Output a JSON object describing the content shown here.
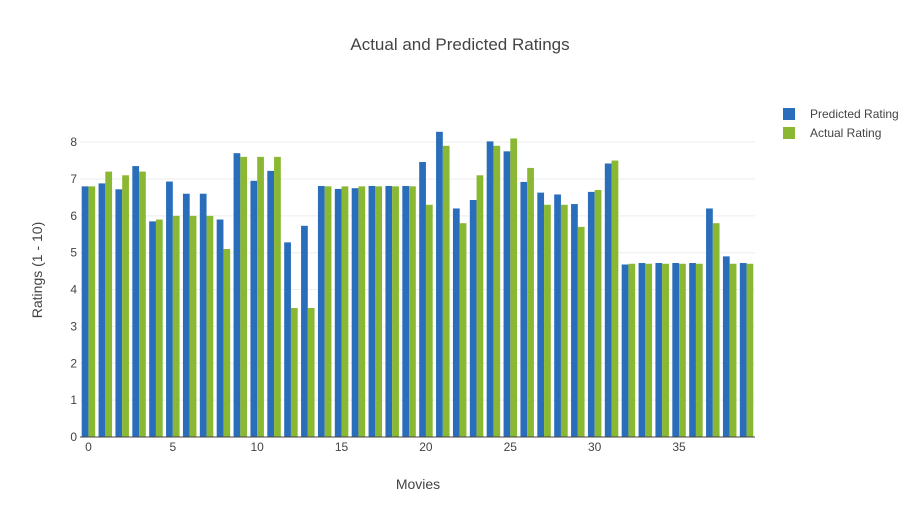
{
  "chart_data": {
    "type": "bar",
    "title": "Actual and Predicted Ratings",
    "xlabel": "Movies",
    "ylabel": "Ratings (1 - 10)",
    "x": [
      0,
      1,
      2,
      3,
      4,
      5,
      6,
      7,
      8,
      9,
      10,
      11,
      12,
      13,
      14,
      15,
      16,
      17,
      18,
      19,
      20,
      21,
      22,
      23,
      24,
      25,
      26,
      27,
      28,
      29,
      30,
      31,
      32,
      33,
      34,
      35,
      36,
      37,
      38,
      39
    ],
    "xticks": [
      0,
      5,
      10,
      15,
      20,
      25,
      30,
      35
    ],
    "ylim": [
      0,
      8.6
    ],
    "yticks": [
      0,
      1,
      2,
      3,
      4,
      5,
      6,
      7,
      8
    ],
    "grid": true,
    "legend_position": "top-right",
    "series": [
      {
        "name": "Predicted Rating",
        "color": "#2a6ebb",
        "values": [
          6.8,
          6.88,
          6.72,
          7.35,
          5.85,
          6.93,
          6.6,
          6.6,
          5.9,
          7.7,
          6.95,
          7.22,
          5.28,
          5.73,
          6.81,
          6.73,
          6.75,
          6.81,
          6.81,
          6.81,
          7.46,
          8.28,
          6.2,
          6.43,
          8.02,
          7.75,
          6.92,
          6.63,
          6.58,
          6.32,
          6.65,
          7.42,
          4.68,
          4.72,
          4.72,
          4.72,
          4.72,
          6.2,
          4.9,
          4.72
        ]
      },
      {
        "name": "Actual Rating",
        "color": "#8ab832",
        "values": [
          6.8,
          7.2,
          7.1,
          7.2,
          5.9,
          6.0,
          6.0,
          6.0,
          5.1,
          7.6,
          7.6,
          7.6,
          3.5,
          3.5,
          6.8,
          6.8,
          6.8,
          6.8,
          6.8,
          6.8,
          6.3,
          7.9,
          5.8,
          7.1,
          7.9,
          8.1,
          7.3,
          6.3,
          6.3,
          5.7,
          6.7,
          7.5,
          4.7,
          4.7,
          4.7,
          4.7,
          4.7,
          5.8,
          4.7,
          4.7
        ]
      }
    ]
  }
}
